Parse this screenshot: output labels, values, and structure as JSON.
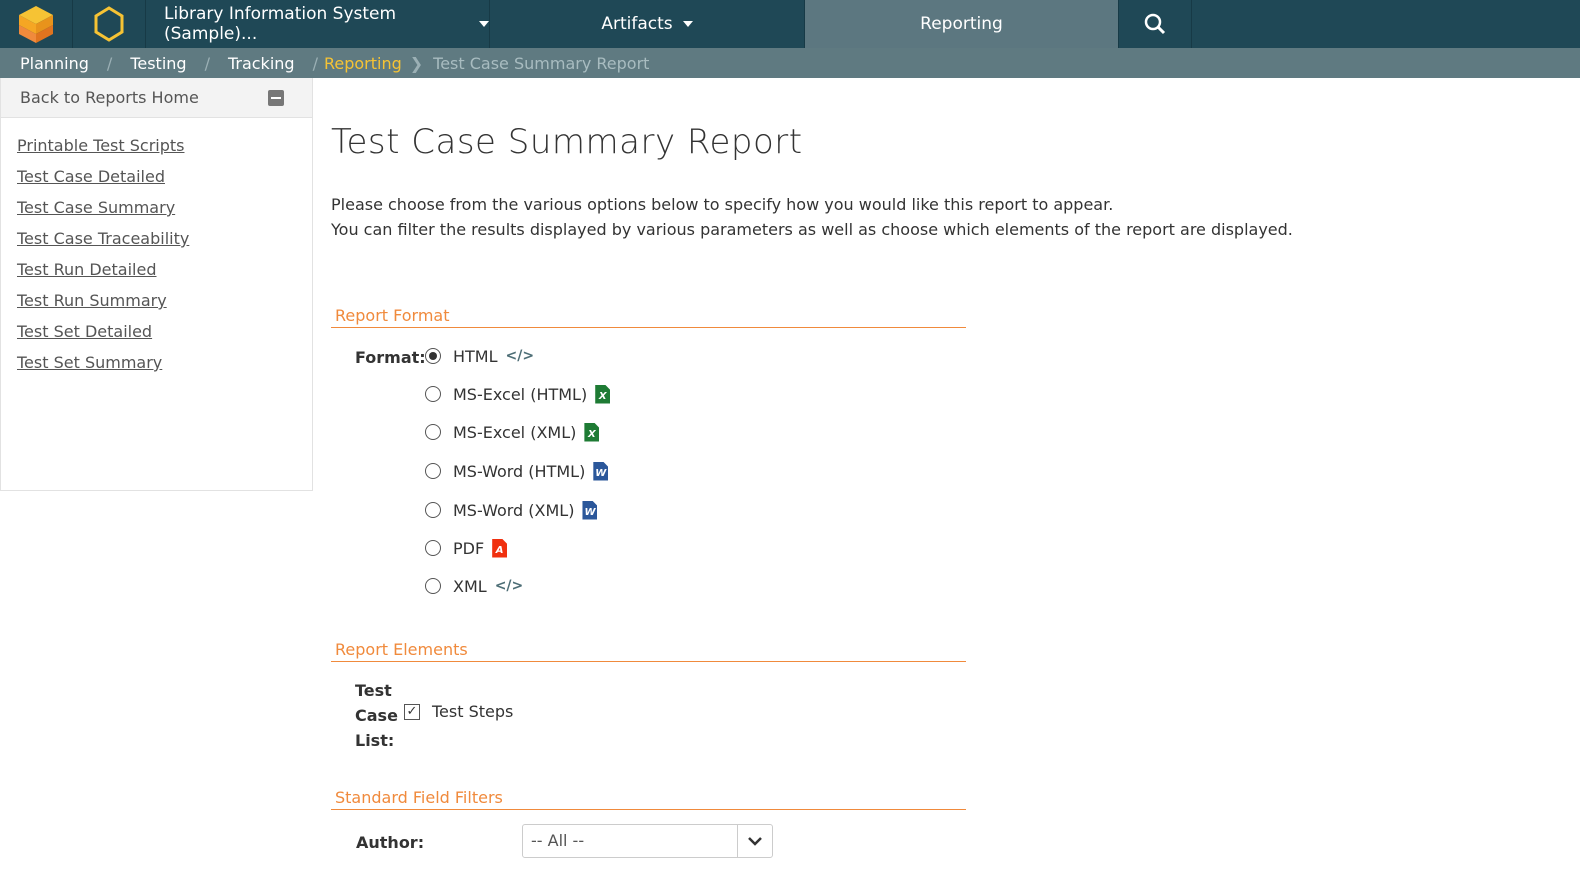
{
  "header": {
    "project": "Library Information System (Sample)...",
    "artifacts": "Artifacts",
    "reporting": "Reporting"
  },
  "breadcrumb": {
    "items": [
      "Planning",
      "Testing",
      "Tracking"
    ],
    "current": "Reporting",
    "page": "Test Case Summary Report"
  },
  "sidebar": {
    "back": "Back to Reports Home",
    "links": [
      "Printable Test Scripts",
      "Test Case Detailed",
      "Test Case Summary",
      "Test Case Traceability",
      "Test Run Detailed",
      "Test Run Summary",
      "Test Set Detailed",
      "Test Set Summary"
    ]
  },
  "main": {
    "title": "Test Case Summary Report",
    "intro1": "Please choose from the various options below to specify how you would like this report to appear.",
    "intro2": "You can filter the results displayed by various parameters as well as choose which elements of the report are displayed.",
    "format_section": "Report Format",
    "format_label": "Format:",
    "formats": [
      {
        "label": "HTML",
        "icon": "code-icon",
        "selected": true
      },
      {
        "label": "MS-Excel (HTML)",
        "icon": "excel-icon"
      },
      {
        "label": "MS-Excel (XML)",
        "icon": "excel-icon"
      },
      {
        "label": "MS-Word (HTML)",
        "icon": "word-icon"
      },
      {
        "label": "MS-Word (XML)",
        "icon": "word-icon"
      },
      {
        "label": "PDF",
        "icon": "pdf-icon"
      },
      {
        "label": "XML",
        "icon": "code-icon"
      }
    ],
    "elements_section": "Report Elements",
    "elements_label": [
      "Test",
      "Case",
      "List:"
    ],
    "test_steps": "Test Steps",
    "test_steps_checked": true,
    "filters_section": "Standard Field Filters",
    "author_label": "Author:",
    "author_value": "-- All --"
  },
  "colors": {
    "topbar": "#1f4856",
    "accent": "#f08a3c",
    "current": "#f6c334",
    "excel": "#1e7b34",
    "word": "#2b579a",
    "pdf": "#f0300f"
  }
}
